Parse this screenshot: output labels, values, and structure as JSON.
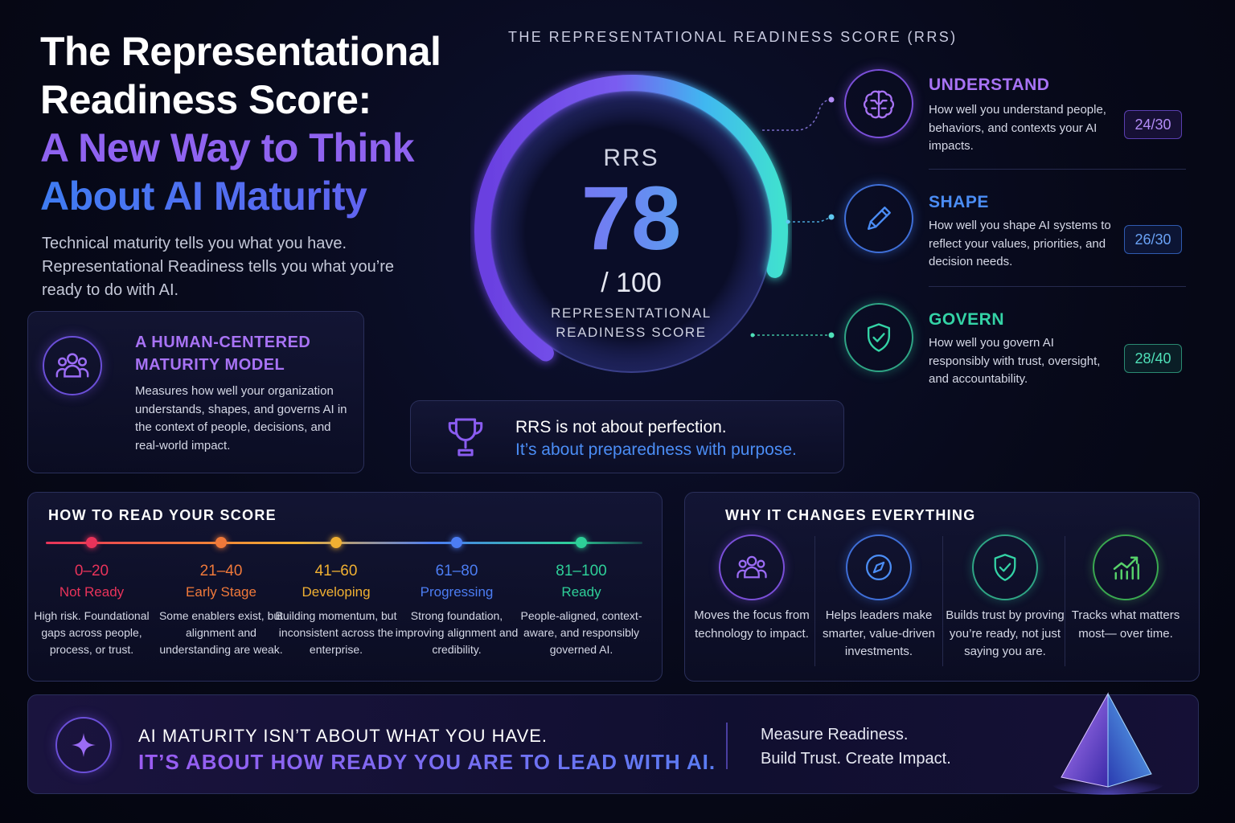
{
  "header": {
    "title_line1": "The Representational",
    "title_line2": "Readiness Score:",
    "title_line3": "A New Way to Think",
    "title_line4": "About AI Maturity",
    "intro": "Technical maturity tells you what you have. Representational Readiness tells you what you’re ready to do with AI."
  },
  "human_card": {
    "icon": "people-icon",
    "title": "A HUMAN-CENTERED MATURITY MODEL",
    "desc": "Measures how well your organization understands, shapes, and governs AI in the context of people, decisions, and real-world impact."
  },
  "gauge": {
    "heading": "THE REPRESENTATIONAL READINESS SCORE (RRS)",
    "abbr": "RRS",
    "score": "78",
    "max": "/ 100",
    "label_line1": "REPRESENTATIONAL",
    "label_line2": "READINESS SCORE",
    "value": 78,
    "max_value": 100
  },
  "dimensions": [
    {
      "icon": "brain-icon",
      "title": "UNDERSTAND",
      "desc": "How well you understand people, behaviors, and contexts your AI impacts.",
      "score": "24/30",
      "color": "#a873f5"
    },
    {
      "icon": "pencil-icon",
      "title": "SHAPE",
      "desc": "How well you shape AI systems to reflect your values, priorities, and decision needs.",
      "score": "26/30",
      "color": "#4b8df5"
    },
    {
      "icon": "shield-check-icon",
      "title": "GOVERN",
      "desc": "How well you govern AI responsibly with trust, oversight, and accountability.",
      "score": "28/40",
      "color": "#34d3a6"
    }
  ],
  "quote": {
    "icon": "trophy-icon",
    "line1": "RRS is not about perfection.",
    "line2": "It’s about preparedness with purpose."
  },
  "read": {
    "heading": "HOW TO READ YOUR SCORE",
    "ranges": [
      {
        "range": "0–20",
        "name": "Not Ready",
        "desc": "High risk. Foundational gaps across people, process, or trust.",
        "color": "#e8335a"
      },
      {
        "range": "21–40",
        "name": "Early Stage",
        "desc": "Some enablers exist, but alignment and understanding are weak.",
        "color": "#f0793a"
      },
      {
        "range": "41–60",
        "name": "Developing",
        "desc": "Building momentum, but inconsistent across the enterprise.",
        "color": "#f0b032"
      },
      {
        "range": "61–80",
        "name": "Progressing",
        "desc": "Strong foundation, improving alignment and credibility.",
        "color": "#4c7df3"
      },
      {
        "range": "81–100",
        "name": "Ready",
        "desc": "People-aligned, context-aware, and responsibly governed AI.",
        "color": "#2ecf98"
      }
    ]
  },
  "why": {
    "heading": "WHY IT CHANGES EVERYTHING",
    "items": [
      {
        "icon": "people-icon",
        "desc": "Moves the focus from technology to impact.",
        "color": "#9b5cf2"
      },
      {
        "icon": "compass-icon",
        "desc": "Helps leaders make smarter, value-driven investments.",
        "color": "#4b8df5"
      },
      {
        "icon": "shield-check-icon",
        "desc": "Builds trust by proving you’re ready, not just saying you are.",
        "color": "#34d3a6"
      },
      {
        "icon": "growth-chart-icon",
        "desc": "Tracks what matters most— over time.",
        "color": "#57d16a"
      }
    ]
  },
  "banner": {
    "icon": "sparkle-icon",
    "line1": "AI MATURITY ISN’T ABOUT WHAT YOU HAVE.",
    "line2": "IT’S ABOUT HOW READY YOU ARE TO LEAD WITH AI.",
    "tagline1": "Measure Readiness.",
    "tagline2": "Build Trust. Create Impact."
  }
}
